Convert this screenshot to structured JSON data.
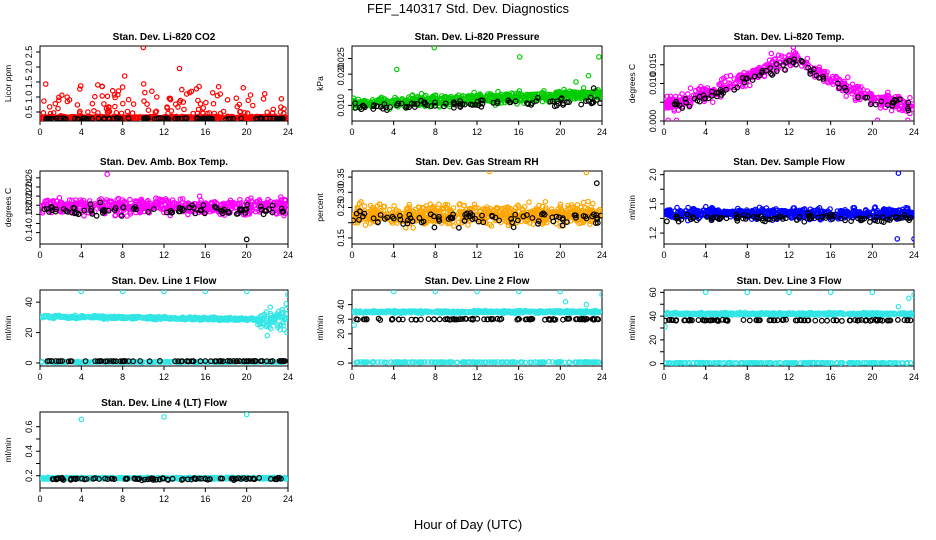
{
  "figure": {
    "title": "FEF_140317  Std. Dev. Diagnostics",
    "xlabel": "Hour of Day (UTC)"
  },
  "chart_data": [
    {
      "id": "co2",
      "type": "scatter",
      "title": "Stan. Dev. Li-820 CO2",
      "ylabel": "Licor ppm",
      "xlim": [
        0,
        24
      ],
      "ylim": [
        0.2,
        2.7
      ],
      "xticks": [
        0,
        4,
        8,
        12,
        16,
        20,
        24
      ],
      "yticks": [
        0.5,
        1.0,
        1.5,
        2.0,
        2.5
      ],
      "ytick_labels": [
        "0.5",
        "1.0",
        "1.5",
        "2.0",
        "2.5"
      ],
      "colors": {
        "main": "#ff0000",
        "ref": "#000000"
      },
      "series": [
        {
          "role": "main",
          "base": 0.32,
          "spread": 0.06,
          "spike_prob": 0.2,
          "spike_min": 0.45,
          "spike_max": 1.5,
          "count": 600,
          "outliers": [
            [
              8.2,
              1.7
            ],
            [
              10.0,
              2.65
            ],
            [
              13.5,
              1.95
            ],
            [
              14.2,
              1.1
            ],
            [
              7.6,
              1.2
            ],
            [
              11.3,
              1.0
            ]
          ]
        },
        {
          "role": "ref",
          "base": 0.28,
          "spread": 0.04,
          "count": 90
        }
      ]
    },
    {
      "id": "pressure",
      "type": "scatter",
      "title": "Stan. Dev. Li-820 Pressure",
      "ylabel": "kPa",
      "xlim": [
        0,
        24
      ],
      "ylim": [
        0.005,
        0.029
      ],
      "xticks": [
        0,
        4,
        8,
        12,
        16,
        20,
        24
      ],
      "yticks": [
        0.01,
        0.015,
        0.02,
        0.025
      ],
      "ytick_labels": [
        "0.010",
        "",
        "0.020",
        "0.025"
      ],
      "colors": {
        "main": "#00cc00",
        "ref": "#000000"
      },
      "series": [
        {
          "role": "main",
          "base": 0.0105,
          "trend": 0.003,
          "spread": 0.0028,
          "count": 650,
          "outliers": [
            [
              7.9,
              0.0285
            ],
            [
              4.3,
              0.0215
            ],
            [
              16.1,
              0.0255
            ],
            [
              23.7,
              0.0255
            ],
            [
              21.5,
              0.0175
            ],
            [
              22.7,
              0.0195
            ]
          ]
        },
        {
          "role": "ref",
          "base": 0.0095,
          "trend": 0.002,
          "spread": 0.002,
          "count": 90,
          "outliers": [
            [
              23.2,
              0.0155
            ]
          ]
        }
      ]
    },
    {
      "id": "temp",
      "type": "scatter",
      "title": "Stan. Dev. Li-820 Temp.",
      "ylabel": "degrees C",
      "xlim": [
        0,
        24
      ],
      "ylim": [
        0.0,
        0.02
      ],
      "xticks": [
        0,
        4,
        8,
        12,
        16,
        20,
        24
      ],
      "yticks": [
        0.0,
        0.005,
        0.01,
        0.015
      ],
      "ytick_labels": [
        "0.000",
        "",
        "0.010",
        "0.015"
      ],
      "colors": {
        "main": "#ff00ff",
        "ref": "#000000"
      },
      "series": [
        {
          "role": "main",
          "profile": [
            [
              0,
              0.004
            ],
            [
              5,
              0.008
            ],
            [
              8,
              0.012
            ],
            [
              12.5,
              0.017
            ],
            [
              16,
              0.011
            ],
            [
              20,
              0.006
            ],
            [
              24,
              0.004
            ]
          ],
          "spread": 0.0035,
          "count": 450,
          "outliers": [
            [
              0.4,
              0.0002
            ],
            [
              1.2,
              0.0002
            ],
            [
              20.5,
              0.0002
            ],
            [
              23.4,
              0.0002
            ],
            [
              10.3,
              0.018
            ]
          ]
        },
        {
          "role": "ref",
          "profile": [
            [
              0,
              0.004
            ],
            [
              5,
              0.007
            ],
            [
              8,
              0.011
            ],
            [
              12.5,
              0.016
            ],
            [
              16,
              0.01
            ],
            [
              20,
              0.005
            ],
            [
              24,
              0.004
            ]
          ],
          "spread": 0.0025,
          "count": 80
        }
      ]
    },
    {
      "id": "boxtemp",
      "type": "scatter",
      "title": "Stan. Dev. Amb. Box Temp.",
      "ylabel": "degrees C",
      "xlim": [
        0,
        24
      ],
      "ylim": [
        0.115,
        0.275
      ],
      "xticks": [
        0,
        4,
        8,
        12,
        16,
        20,
        24
      ],
      "yticks": [
        0.14,
        0.16,
        0.18,
        0.2,
        0.22,
        0.24,
        0.26
      ],
      "ytick_labels": [
        "0.14",
        "",
        "0.18",
        "0.20",
        "0.22",
        "0.24",
        "0.26"
      ],
      "colors": {
        "main": "#ff00ff",
        "ref": "#000000"
      },
      "series": [
        {
          "role": "main",
          "base": 0.197,
          "spread": 0.028,
          "count": 550,
          "outliers": [
            [
              6.5,
              0.268
            ]
          ]
        },
        {
          "role": "ref",
          "base": 0.19,
          "spread": 0.02,
          "count": 90,
          "outliers": [
            [
              20.0,
              0.125
            ]
          ]
        }
      ]
    },
    {
      "id": "rh",
      "type": "scatter",
      "title": "Stan. Dev. Gas Stream RH",
      "ylabel": "percent",
      "xlim": [
        0,
        24
      ],
      "ylim": [
        0.13,
        0.37
      ],
      "xticks": [
        0,
        4,
        8,
        12,
        16,
        20,
        24
      ],
      "yticks": [
        0.15,
        0.2,
        0.25,
        0.3,
        0.35
      ],
      "ytick_labels": [
        "0.15",
        "",
        "0.25",
        "0.30",
        "0.35"
      ],
      "colors": {
        "main": "#ffa500",
        "ref": "#000000"
      },
      "series": [
        {
          "role": "main",
          "base": 0.225,
          "spread": 0.055,
          "count": 650,
          "outliers": [
            [
              13.2,
              0.368
            ],
            [
              22.5,
              0.365
            ]
          ]
        },
        {
          "role": "ref",
          "base": 0.215,
          "spread": 0.04,
          "count": 90,
          "outliers": [
            [
              23.5,
              0.33
            ]
          ]
        }
      ]
    },
    {
      "id": "sampleflow",
      "type": "scatter",
      "title": "Stan. Dev. Sample Flow",
      "ylabel": "ml/min",
      "xlim": [
        0,
        24
      ],
      "ylim": [
        1.05,
        2.05
      ],
      "xticks": [
        0,
        4,
        8,
        12,
        16,
        20,
        24
      ],
      "yticks": [
        1.2,
        1.4,
        1.6,
        1.8,
        2.0
      ],
      "ytick_labels": [
        "1.2",
        "",
        "1.6",
        "",
        "2.0"
      ],
      "colors": {
        "main": "#0000ff",
        "ref": "#000000"
      },
      "series": [
        {
          "role": "main",
          "base": 1.47,
          "spread": 0.13,
          "count": 600,
          "outliers": [
            [
              22.5,
              2.02
            ],
            [
              22.4,
              1.12
            ],
            [
              24.0,
              1.12
            ]
          ]
        },
        {
          "role": "ref",
          "base": 1.4,
          "spread": 0.09,
          "count": 90
        }
      ]
    },
    {
      "id": "line1",
      "type": "scatter",
      "title": "Stan. Dev. Line 1 Flow",
      "ylabel": "ml/min",
      "xlim": [
        0,
        24
      ],
      "ylim": [
        -2,
        48
      ],
      "xticks": [
        0,
        4,
        8,
        12,
        16,
        20,
        24
      ],
      "yticks": [
        0,
        20,
        40
      ],
      "ytick_labels": [
        "0",
        "20",
        "40"
      ],
      "colors": {
        "main": "#33e6e6",
        "ref": "#000000"
      },
      "series": [
        {
          "role": "main",
          "base": 30.5,
          "trend": -2,
          "spread": 1.5,
          "count": 500,
          "tail_spread": [
            21,
            24,
            8
          ],
          "outliers": [
            [
              4.0,
              47
            ],
            [
              8.0,
              47
            ],
            [
              12.0,
              47
            ],
            [
              16.0,
              47
            ],
            [
              20.0,
              47
            ],
            [
              24.0,
              45
            ],
            [
              22.0,
              18
            ]
          ]
        },
        {
          "role": "main",
          "base": 0.6,
          "spread": 0.4,
          "count": 200
        },
        {
          "role": "ref",
          "base": 1.2,
          "spread": 0.25,
          "count": 90
        }
      ]
    },
    {
      "id": "line2",
      "type": "scatter",
      "title": "Stan. Dev. Line 2 Flow",
      "ylabel": "ml/min",
      "xlim": [
        0,
        24
      ],
      "ylim": [
        -2,
        50
      ],
      "xticks": [
        0,
        4,
        8,
        12,
        16,
        20,
        24
      ],
      "yticks": [
        0,
        10,
        20,
        30,
        40
      ],
      "ytick_labels": [
        "0",
        "",
        "20",
        "30",
        "40"
      ],
      "colors": {
        "main": "#33e6e6",
        "ref": "#000000"
      },
      "series": [
        {
          "role": "main",
          "base": 35,
          "spread": 1.4,
          "count": 500,
          "outliers": [
            [
              4.0,
              49
            ],
            [
              8.0,
              49
            ],
            [
              12.0,
              49
            ],
            [
              16.0,
              49
            ],
            [
              20.0,
              49
            ],
            [
              24.0,
              47
            ],
            [
              0.2,
              26
            ],
            [
              20.5,
              42
            ],
            [
              22.5,
              40
            ]
          ]
        },
        {
          "role": "main",
          "base": 0.6,
          "spread": 0.4,
          "count": 200
        },
        {
          "role": "ref",
          "base": 30,
          "spread": 0.8,
          "count": 90
        }
      ]
    },
    {
      "id": "line3",
      "type": "scatter",
      "title": "Stan. Dev. Line 3 Flow",
      "ylabel": "ml/min",
      "xlim": [
        0,
        24
      ],
      "ylim": [
        -2,
        62
      ],
      "xticks": [
        0,
        4,
        8,
        12,
        16,
        20,
        24
      ],
      "yticks": [
        0,
        10,
        20,
        30,
        40,
        50,
        60
      ],
      "ytick_labels": [
        "0",
        "",
        "20",
        "",
        "40",
        "",
        "60"
      ],
      "colors": {
        "main": "#33e6e6",
        "ref": "#000000"
      },
      "series": [
        {
          "role": "main",
          "base": 42,
          "spread": 1.6,
          "count": 500,
          "outliers": [
            [
              4.0,
              60
            ],
            [
              8.0,
              60
            ],
            [
              12.0,
              60
            ],
            [
              16.0,
              60
            ],
            [
              20.0,
              60
            ],
            [
              24.0,
              58
            ],
            [
              0.1,
              31
            ],
            [
              22.5,
              48
            ],
            [
              23.5,
              55
            ]
          ]
        },
        {
          "role": "main",
          "base": 0.6,
          "spread": 0.4,
          "count": 200
        },
        {
          "role": "ref",
          "base": 36.5,
          "spread": 0.8,
          "count": 90
        }
      ]
    },
    {
      "id": "line4",
      "type": "scatter",
      "title": "Stan. Dev. Line 4 (LT) Flow",
      "ylabel": "ml/min",
      "xlim": [
        0,
        24
      ],
      "ylim": [
        0.1,
        0.72
      ],
      "xticks": [
        0,
        4,
        8,
        12,
        16,
        20,
        24
      ],
      "yticks": [
        0.2,
        0.3,
        0.4,
        0.5,
        0.6
      ],
      "ytick_labels": [
        "0.2",
        "",
        "0.4",
        "",
        "0.6"
      ],
      "colors": {
        "main": "#33e6e6",
        "ref": "#000000"
      },
      "series": [
        {
          "role": "main",
          "base": 0.18,
          "spread": 0.012,
          "count": 500,
          "outliers": [
            [
              4.0,
              0.66
            ],
            [
              12.0,
              0.68
            ],
            [
              20.0,
              0.7
            ]
          ]
        },
        {
          "role": "ref",
          "base": 0.175,
          "spread": 0.015,
          "count": 90
        }
      ]
    }
  ]
}
